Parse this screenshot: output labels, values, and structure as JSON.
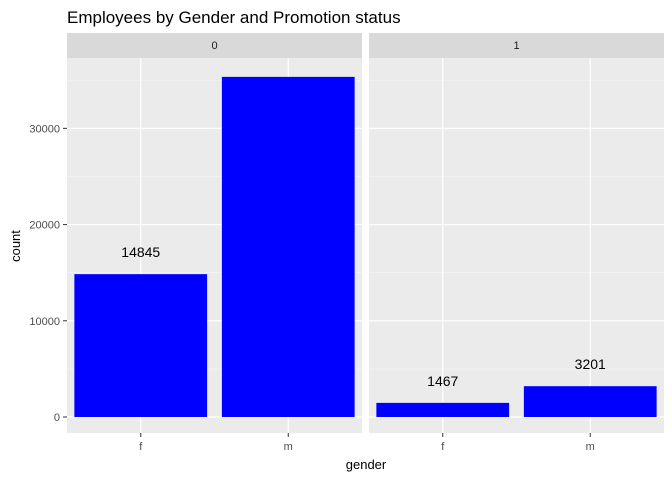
{
  "chart_data": {
    "type": "bar",
    "title": "Employees by Gender and Promotion status",
    "xlabel": "gender",
    "ylabel": "count",
    "categories": [
      "f",
      "m"
    ],
    "ylim": [
      0,
      37000
    ],
    "yticks": [
      0,
      10000,
      20000,
      30000
    ],
    "ytick_labels": [
      "0",
      "10000",
      "20000",
      "30000"
    ],
    "bar_color": "#0000ff",
    "panel_background": "#ebebeb",
    "strip_background": "#d9d9d9",
    "grid": true,
    "facets": [
      {
        "label": "0",
        "values": [
          14845,
          35350
        ],
        "data_labels": [
          "14845",
          ""
        ]
      },
      {
        "label": "1",
        "values": [
          1467,
          3201
        ],
        "data_labels": [
          "1467",
          "3201"
        ]
      }
    ]
  }
}
